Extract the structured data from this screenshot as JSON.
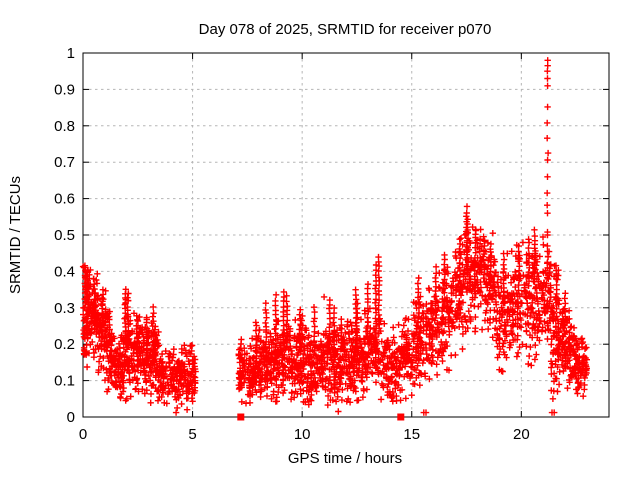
{
  "chart_data": {
    "type": "scatter",
    "title": "Day 078 of 2025, SRMTID for receiver p070",
    "xlabel": "GPS time / hours",
    "ylabel": "SRMTID / TECUs",
    "xlim": [
      0,
      24
    ],
    "ylim": [
      0,
      1
    ],
    "xticks": [
      0,
      5,
      10,
      15,
      20
    ],
    "xtick_labels": [
      "0",
      "5",
      "10",
      "15",
      "20"
    ],
    "yticks": [
      0,
      0.1,
      0.2,
      0.3,
      0.4,
      0.5,
      0.6,
      0.7,
      0.8,
      0.9,
      1
    ],
    "ytick_labels": [
      "0",
      "0.1",
      "0.2",
      "0.3",
      "0.4",
      "0.5",
      "0.6",
      "0.7",
      "0.8",
      "0.9",
      "1"
    ],
    "grid": "dashed-major",
    "legend": "none",
    "marker": {
      "shape": "plus",
      "color": "#ff0000",
      "size": 7
    },
    "square_marker": {
      "shape": "filled-square",
      "color": "#ff0000",
      "size": 7
    },
    "grid_color": "#b5b5b5",
    "border_color": "#000000",
    "data_gap_hours": [
      5.15,
      7.1
    ],
    "cluster_fields": [
      "x_start",
      "x_end",
      "n_points",
      "y_center_start",
      "y_center_end",
      "y_sigma"
    ],
    "clusters": [
      [
        0.0,
        0.3,
        80,
        0.27,
        0.28,
        0.065
      ],
      [
        0.3,
        0.7,
        75,
        0.29,
        0.27,
        0.055
      ],
      [
        0.7,
        1.1,
        70,
        0.25,
        0.22,
        0.06
      ],
      [
        1.1,
        1.5,
        60,
        0.18,
        0.15,
        0.05
      ],
      [
        1.5,
        1.85,
        55,
        0.14,
        0.14,
        0.04
      ],
      [
        1.85,
        2.2,
        60,
        0.19,
        0.2,
        0.065
      ],
      [
        2.2,
        2.7,
        70,
        0.18,
        0.16,
        0.05
      ],
      [
        2.7,
        3.05,
        55,
        0.16,
        0.17,
        0.05
      ],
      [
        3.05,
        3.45,
        60,
        0.15,
        0.14,
        0.05
      ],
      [
        3.45,
        4.1,
        80,
        0.12,
        0.11,
        0.035
      ],
      [
        4.1,
        4.6,
        65,
        0.11,
        0.11,
        0.035
      ],
      [
        4.6,
        5.15,
        70,
        0.12,
        0.12,
        0.035
      ],
      [
        7.1,
        7.35,
        40,
        0.13,
        0.13,
        0.045
      ],
      [
        7.35,
        8.0,
        85,
        0.125,
        0.13,
        0.04
      ],
      [
        8.0,
        8.6,
        85,
        0.14,
        0.14,
        0.045
      ],
      [
        8.6,
        9.4,
        110,
        0.15,
        0.16,
        0.05
      ],
      [
        9.4,
        10.2,
        110,
        0.16,
        0.15,
        0.05
      ],
      [
        10.2,
        11.0,
        110,
        0.13,
        0.14,
        0.045
      ],
      [
        11.0,
        11.6,
        85,
        0.14,
        0.15,
        0.05
      ],
      [
        11.6,
        12.2,
        85,
        0.16,
        0.15,
        0.05
      ],
      [
        12.2,
        12.8,
        85,
        0.15,
        0.16,
        0.05
      ],
      [
        12.8,
        13.6,
        100,
        0.17,
        0.19,
        0.055
      ],
      [
        13.6,
        14.4,
        90,
        0.15,
        0.13,
        0.05
      ],
      [
        14.4,
        15.0,
        75,
        0.15,
        0.17,
        0.05
      ],
      [
        15.0,
        15.6,
        80,
        0.19,
        0.22,
        0.055
      ],
      [
        15.6,
        16.2,
        80,
        0.22,
        0.25,
        0.06
      ],
      [
        16.2,
        16.9,
        90,
        0.25,
        0.28,
        0.065
      ],
      [
        16.9,
        17.7,
        100,
        0.32,
        0.36,
        0.07
      ],
      [
        17.7,
        18.8,
        130,
        0.38,
        0.36,
        0.065
      ],
      [
        18.8,
        19.5,
        90,
        0.3,
        0.28,
        0.075
      ],
      [
        19.5,
        20.3,
        100,
        0.3,
        0.32,
        0.075
      ],
      [
        20.3,
        21.0,
        90,
        0.3,
        0.33,
        0.075
      ],
      [
        21.0,
        21.35,
        55,
        0.33,
        0.34,
        0.065
      ],
      [
        21.35,
        21.8,
        75,
        0.25,
        0.22,
        0.08
      ],
      [
        21.8,
        22.3,
        80,
        0.22,
        0.17,
        0.05
      ],
      [
        22.3,
        23.0,
        100,
        0.16,
        0.14,
        0.04
      ]
    ],
    "spike_fields": [
      "x",
      "y_base",
      "y_top"
    ],
    "spikes": [
      [
        0.1,
        0.3,
        0.42
      ],
      [
        0.2,
        0.32,
        0.41
      ],
      [
        0.5,
        0.3,
        0.38
      ],
      [
        0.9,
        0.27,
        0.35
      ],
      [
        1.2,
        0.2,
        0.3
      ],
      [
        1.95,
        0.22,
        0.36
      ],
      [
        2.05,
        0.2,
        0.33
      ],
      [
        2.45,
        0.2,
        0.28
      ],
      [
        2.9,
        0.18,
        0.28
      ],
      [
        3.2,
        0.17,
        0.3
      ],
      [
        3.3,
        0.16,
        0.26
      ],
      [
        5.0,
        0.12,
        0.17
      ],
      [
        7.2,
        0.16,
        0.22
      ],
      [
        7.9,
        0.17,
        0.27
      ],
      [
        8.35,
        0.18,
        0.31
      ],
      [
        8.8,
        0.19,
        0.335
      ],
      [
        9.15,
        0.2,
        0.35
      ],
      [
        9.3,
        0.19,
        0.34
      ],
      [
        9.9,
        0.19,
        0.3
      ],
      [
        10.0,
        0.2,
        0.28
      ],
      [
        10.55,
        0.17,
        0.31
      ],
      [
        11.25,
        0.18,
        0.33
      ],
      [
        11.45,
        0.17,
        0.3
      ],
      [
        11.8,
        0.19,
        0.28
      ],
      [
        12.45,
        0.18,
        0.35
      ],
      [
        12.5,
        0.17,
        0.32
      ],
      [
        13.0,
        0.21,
        0.37
      ],
      [
        13.35,
        0.22,
        0.42
      ],
      [
        13.5,
        0.23,
        0.45
      ],
      [
        15.3,
        0.25,
        0.38
      ],
      [
        16.1,
        0.28,
        0.42
      ],
      [
        16.5,
        0.3,
        0.45
      ],
      [
        17.2,
        0.36,
        0.5
      ],
      [
        17.5,
        0.42,
        0.58
      ],
      [
        17.55,
        0.4,
        0.55
      ],
      [
        17.9,
        0.4,
        0.52
      ],
      [
        18.1,
        0.4,
        0.5
      ],
      [
        18.3,
        0.38,
        0.5
      ],
      [
        18.6,
        0.36,
        0.48
      ],
      [
        19.2,
        0.33,
        0.45
      ],
      [
        19.9,
        0.35,
        0.47
      ],
      [
        20.35,
        0.36,
        0.5
      ],
      [
        20.6,
        0.37,
        0.52
      ],
      [
        21.6,
        0.3,
        0.42
      ],
      [
        22.0,
        0.26,
        0.35
      ]
    ],
    "spike_column": {
      "x": 21.2,
      "values": [
        0.98,
        0.965,
        0.95,
        0.93,
        0.91,
        0.852,
        0.808,
        0.766,
        0.725,
        0.706,
        0.66,
        0.615,
        0.582,
        0.56,
        0.508,
        0.5,
        0.47,
        0.455,
        0.44,
        0.425,
        0.41
      ]
    },
    "extra_points": [
      [
        11.0,
        0.33
      ],
      [
        4.3,
        0.025
      ],
      [
        4.75,
        0.02
      ],
      [
        1.95,
        0.045
      ],
      [
        2.0,
        0.05
      ],
      [
        8.6,
        0.05
      ],
      [
        12.1,
        0.05
      ],
      [
        13.9,
        0.06
      ],
      [
        19.0,
        0.13
      ],
      [
        21.44,
        0.05
      ],
      [
        21.65,
        0.07
      ],
      [
        22.6,
        0.08
      ],
      [
        0.05,
        0.19
      ],
      [
        0.02,
        0.3
      ]
    ],
    "baseline_squares": [
      [
        7.2,
        0
      ],
      [
        14.5,
        0
      ]
    ],
    "baseline_plus": [
      [
        4.25,
        0.012
      ],
      [
        11.65,
        0.015
      ],
      [
        15.55,
        0.012
      ],
      [
        15.65,
        0.012
      ],
      [
        21.4,
        0.012
      ],
      [
        21.5,
        0.012
      ]
    ]
  }
}
